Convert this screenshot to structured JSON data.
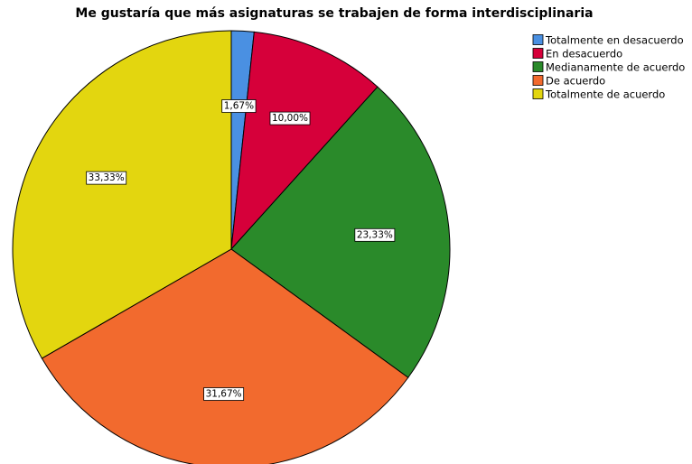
{
  "chart_data": {
    "type": "pie",
    "title": "Me gustaría que más asignaturas se trabajen de forma interdisciplinaria",
    "categories": [
      "Totalmente en desacuerdo",
      "En desacuerdo",
      "Medianamente de acuerdo",
      "De acuerdo",
      "Totalmente de acuerdo"
    ],
    "values": [
      1.67,
      10.0,
      23.33,
      31.67,
      33.33
    ],
    "value_labels": [
      "1,67%",
      "10,00%",
      "23,33%",
      "31,67%",
      "33,33%"
    ],
    "colors": [
      "#4a90e2",
      "#d6003a",
      "#2a8a2a",
      "#f26a2e",
      "#e3d60f"
    ],
    "legend": "top-right"
  }
}
